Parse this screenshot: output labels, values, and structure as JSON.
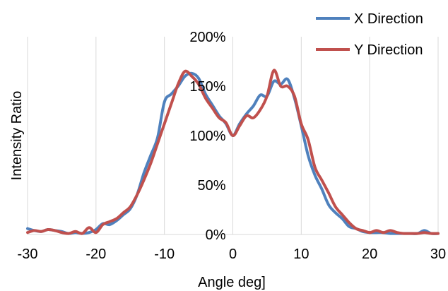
{
  "chart_data": {
    "type": "line",
    "title": "",
    "xlabel": "Angle deg]",
    "ylabel": "Intensity Ratio",
    "xlim": [
      -30,
      30
    ],
    "ylim": [
      0,
      200
    ],
    "xticks": [
      -30,
      -20,
      -10,
      0,
      10,
      20,
      30
    ],
    "xtick_labels": [
      "-30",
      "-20",
      "-10",
      "0",
      "10",
      "20",
      "30"
    ],
    "yticks": [
      0,
      50,
      100,
      150,
      200
    ],
    "ytick_labels": [
      "0%",
      "50%",
      "100%",
      "150%",
      "200%"
    ],
    "grid": "vertical",
    "legend_position": "top-right",
    "series": [
      {
        "name": "X Direction",
        "color": "#4f81bd",
        "points": [
          [
            -30,
            6
          ],
          [
            -29,
            4
          ],
          [
            -28,
            3
          ],
          [
            -27,
            5
          ],
          [
            -26,
            4
          ],
          [
            -25,
            3
          ],
          [
            -24,
            1
          ],
          [
            -23,
            2
          ],
          [
            -22,
            1
          ],
          [
            -21,
            2
          ],
          [
            -20,
            5
          ],
          [
            -19,
            11
          ],
          [
            -18,
            10
          ],
          [
            -17,
            14
          ],
          [
            -16,
            20
          ],
          [
            -15,
            26
          ],
          [
            -14,
            40
          ],
          [
            -13,
            62
          ],
          [
            -12,
            80
          ],
          [
            -11,
            98
          ],
          [
            -10,
            134
          ],
          [
            -9,
            142
          ],
          [
            -8,
            150
          ],
          [
            -7,
            160
          ],
          [
            -6,
            163
          ],
          [
            -5,
            158
          ],
          [
            -4,
            142
          ],
          [
            -3,
            131
          ],
          [
            -2,
            120
          ],
          [
            -1,
            112
          ],
          [
            0,
            100
          ],
          [
            1,
            112
          ],
          [
            2,
            122
          ],
          [
            3,
            130
          ],
          [
            4,
            141
          ],
          [
            5,
            140
          ],
          [
            6,
            155
          ],
          [
            7,
            152
          ],
          [
            8,
            157
          ],
          [
            9,
            138
          ],
          [
            10,
            110
          ],
          [
            11,
            80
          ],
          [
            12,
            60
          ],
          [
            13,
            46
          ],
          [
            14,
            30
          ],
          [
            15,
            22
          ],
          [
            16,
            16
          ],
          [
            17,
            8
          ],
          [
            18,
            6
          ],
          [
            19,
            3
          ],
          [
            20,
            2
          ],
          [
            21,
            2
          ],
          [
            22,
            2
          ],
          [
            23,
            1
          ],
          [
            24,
            1
          ],
          [
            25,
            1
          ],
          [
            26,
            1
          ],
          [
            27,
            1
          ],
          [
            28,
            4
          ],
          [
            29,
            1
          ],
          [
            30,
            1
          ]
        ]
      },
      {
        "name": "Y Direction",
        "color": "#c0504d",
        "points": [
          [
            -30,
            2
          ],
          [
            -29,
            4
          ],
          [
            -28,
            3
          ],
          [
            -27,
            5
          ],
          [
            -26,
            4
          ],
          [
            -25,
            2
          ],
          [
            -24,
            1
          ],
          [
            -23,
            3
          ],
          [
            -22,
            1
          ],
          [
            -21,
            7
          ],
          [
            -20,
            2
          ],
          [
            -19,
            10
          ],
          [
            -18,
            13
          ],
          [
            -17,
            16
          ],
          [
            -16,
            22
          ],
          [
            -15,
            28
          ],
          [
            -14,
            40
          ],
          [
            -13,
            55
          ],
          [
            -12,
            72
          ],
          [
            -11,
            92
          ],
          [
            -10,
            112
          ],
          [
            -9,
            132
          ],
          [
            -8,
            152
          ],
          [
            -7,
            165
          ],
          [
            -6,
            160
          ],
          [
            -5,
            152
          ],
          [
            -4,
            138
          ],
          [
            -3,
            128
          ],
          [
            -2,
            118
          ],
          [
            -1,
            113
          ],
          [
            0,
            100
          ],
          [
            1,
            110
          ],
          [
            2,
            120
          ],
          [
            3,
            118
          ],
          [
            4,
            126
          ],
          [
            5,
            140
          ],
          [
            6,
            166
          ],
          [
            7,
            150
          ],
          [
            8,
            150
          ],
          [
            9,
            140
          ],
          [
            10,
            112
          ],
          [
            11,
            96
          ],
          [
            12,
            68
          ],
          [
            13,
            55
          ],
          [
            14,
            42
          ],
          [
            15,
            28
          ],
          [
            16,
            20
          ],
          [
            17,
            12
          ],
          [
            18,
            6
          ],
          [
            19,
            4
          ],
          [
            20,
            2
          ],
          [
            21,
            4
          ],
          [
            22,
            2
          ],
          [
            23,
            4
          ],
          [
            24,
            2
          ],
          [
            25,
            1
          ],
          [
            26,
            1
          ],
          [
            27,
            1
          ],
          [
            28,
            2
          ],
          [
            29,
            1
          ],
          [
            30,
            1
          ]
        ]
      }
    ]
  }
}
